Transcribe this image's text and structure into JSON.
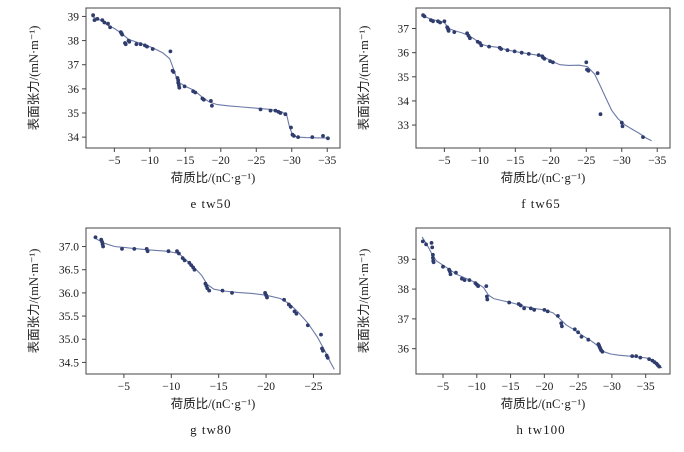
{
  "page": {
    "background": "#ffffff"
  },
  "colors": {
    "point": "#2f3c6e",
    "line": "#6b79a7",
    "axis": "#444444",
    "text": "#1a1a1a"
  },
  "chart_data": [
    {
      "id": "e-tw50",
      "type": "scatter",
      "caption": "e  tw50",
      "xlabel": "荷质比/(nC·g⁻¹)",
      "ylabel": "表面张力/(mN·m⁻¹)",
      "xlim": [
        -1,
        -36.8
      ],
      "ylim": [
        33.55,
        39.35
      ],
      "xtick_values": [
        -5,
        -10,
        -15,
        -20,
        -25,
        -30,
        -35
      ],
      "xtick_labels": [
        "−5",
        "−10",
        "−15",
        "−20",
        "−25",
        "−30",
        "−35"
      ],
      "ytick_values": [
        34,
        35,
        36,
        37,
        38,
        39
      ],
      "ytick_labels": [
        "34",
        "35",
        "36",
        "37",
        "38",
        "39"
      ],
      "points": [
        [
          -2.0,
          39.05
        ],
        [
          -2.2,
          38.85
        ],
        [
          -2.6,
          38.9
        ],
        [
          -3.3,
          38.85
        ],
        [
          -3.6,
          38.75
        ],
        [
          -4.1,
          38.7
        ],
        [
          -4.4,
          38.55
        ],
        [
          -5.9,
          38.35
        ],
        [
          -6.0,
          38.3
        ],
        [
          -6.1,
          38.25
        ],
        [
          -6.5,
          37.9
        ],
        [
          -6.6,
          37.85
        ],
        [
          -7.0,
          38.0
        ],
        [
          -7.1,
          37.95
        ],
        [
          -8.1,
          37.85
        ],
        [
          -8.7,
          37.85
        ],
        [
          -9.3,
          37.8
        ],
        [
          -9.6,
          37.75
        ],
        [
          -10.4,
          37.65
        ],
        [
          -12.9,
          37.55
        ],
        [
          -13.2,
          36.75
        ],
        [
          -13.35,
          36.7
        ],
        [
          -13.9,
          36.45
        ],
        [
          -14.0,
          36.35
        ],
        [
          -14.0,
          36.25
        ],
        [
          -14.1,
          36.15
        ],
        [
          -14.15,
          36.05
        ],
        [
          -14.9,
          36.1
        ],
        [
          -16.1,
          35.9
        ],
        [
          -16.4,
          35.85
        ],
        [
          -17.4,
          35.6
        ],
        [
          -17.6,
          35.55
        ],
        [
          -18.6,
          35.5
        ],
        [
          -18.75,
          35.3
        ],
        [
          -25.6,
          35.15
        ],
        [
          -27.0,
          35.1
        ],
        [
          -27.7,
          35.1
        ],
        [
          -28.1,
          35.05
        ],
        [
          -28.4,
          35.0
        ],
        [
          -29.1,
          34.95
        ],
        [
          -29.9,
          34.4
        ],
        [
          -30.1,
          34.1
        ],
        [
          -30.3,
          34.05
        ],
        [
          -30.9,
          34.0
        ],
        [
          -32.9,
          34.0
        ],
        [
          -34.4,
          34.05
        ],
        [
          -35.1,
          33.95
        ]
      ],
      "fit_line": [
        [
          -1.8,
          39.0
        ],
        [
          -3.0,
          38.85
        ],
        [
          -4.0,
          38.65
        ],
        [
          -5.0,
          38.5
        ],
        [
          -6.0,
          38.3
        ],
        [
          -7.0,
          38.05
        ],
        [
          -8.0,
          37.95
        ],
        [
          -9.0,
          37.85
        ],
        [
          -10.4,
          37.7
        ],
        [
          -11.8,
          37.5
        ],
        [
          -12.8,
          37.25
        ],
        [
          -13.3,
          36.85
        ],
        [
          -13.7,
          36.5
        ],
        [
          -14.2,
          36.25
        ],
        [
          -15.0,
          36.1
        ],
        [
          -16.2,
          35.95
        ],
        [
          -17.4,
          35.65
        ],
        [
          -18.4,
          35.45
        ],
        [
          -19.5,
          35.35
        ],
        [
          -21.0,
          35.3
        ],
        [
          -23.0,
          35.25
        ],
        [
          -25.0,
          35.2
        ],
        [
          -27.0,
          35.15
        ],
        [
          -28.6,
          35.05
        ],
        [
          -29.3,
          34.9
        ],
        [
          -29.7,
          34.4
        ],
        [
          -30.1,
          34.1
        ],
        [
          -30.7,
          34.0
        ],
        [
          -32.0,
          33.98
        ],
        [
          -34.0,
          33.97
        ],
        [
          -35.3,
          33.97
        ]
      ]
    },
    {
      "id": "f-tw65",
      "type": "scatter",
      "caption": "f  tw65",
      "xlabel": "荷质比/(nC·g⁻¹)",
      "ylabel": "表面张力/(mN·m⁻¹)",
      "xlim": [
        -1,
        -36.8
      ],
      "ylim": [
        32.05,
        37.85
      ],
      "xtick_values": [
        -5,
        -10,
        -15,
        -20,
        -25,
        -30,
        -35
      ],
      "xtick_labels": [
        "−5",
        "−10",
        "−15",
        "−20",
        "−25",
        "−30",
        "−35"
      ],
      "ytick_values": [
        33,
        34,
        35,
        36,
        37
      ],
      "ytick_labels": [
        "33",
        "34",
        "35",
        "36",
        "37"
      ],
      "points": [
        [
          -2.0,
          37.55
        ],
        [
          -2.2,
          37.5
        ],
        [
          -3.1,
          37.35
        ],
        [
          -3.4,
          37.3
        ],
        [
          -4.1,
          37.3
        ],
        [
          -4.4,
          37.25
        ],
        [
          -5.0,
          37.3
        ],
        [
          -5.4,
          37.05
        ],
        [
          -5.5,
          37.0
        ],
        [
          -5.55,
          36.95
        ],
        [
          -5.6,
          36.9
        ],
        [
          -6.4,
          36.85
        ],
        [
          -8.2,
          36.8
        ],
        [
          -8.4,
          36.7
        ],
        [
          -8.6,
          36.6
        ],
        [
          -9.7,
          36.45
        ],
        [
          -10.0,
          36.4
        ],
        [
          -10.2,
          36.3
        ],
        [
          -11.3,
          36.25
        ],
        [
          -12.8,
          36.2
        ],
        [
          -13.0,
          36.15
        ],
        [
          -13.9,
          36.1
        ],
        [
          -14.9,
          36.05
        ],
        [
          -15.9,
          36.0
        ],
        [
          -16.9,
          35.95
        ],
        [
          -18.3,
          35.9
        ],
        [
          -18.8,
          35.85
        ],
        [
          -18.9,
          35.8
        ],
        [
          -19.1,
          35.75
        ],
        [
          -19.9,
          35.65
        ],
        [
          -20.3,
          35.6
        ],
        [
          -25.0,
          35.6
        ],
        [
          -25.1,
          35.3
        ],
        [
          -25.3,
          35.25
        ],
        [
          -26.6,
          35.15
        ],
        [
          -27.0,
          33.45
        ],
        [
          -30.0,
          33.1
        ],
        [
          -30.1,
          32.95
        ],
        [
          -33.0,
          32.5
        ]
      ],
      "fit_line": [
        [
          -1.8,
          37.55
        ],
        [
          -3.0,
          37.4
        ],
        [
          -4.0,
          37.32
        ],
        [
          -5.0,
          37.25
        ],
        [
          -5.6,
          37.0
        ],
        [
          -6.5,
          36.9
        ],
        [
          -7.5,
          36.82
        ],
        [
          -8.5,
          36.7
        ],
        [
          -9.3,
          36.55
        ],
        [
          -10.2,
          36.35
        ],
        [
          -11.0,
          36.28
        ],
        [
          -12.5,
          36.22
        ],
        [
          -14.0,
          36.1
        ],
        [
          -15.5,
          36.02
        ],
        [
          -17.0,
          35.95
        ],
        [
          -18.5,
          35.88
        ],
        [
          -19.3,
          35.78
        ],
        [
          -20.3,
          35.62
        ],
        [
          -21.3,
          35.5
        ],
        [
          -22.5,
          35.47
        ],
        [
          -24.0,
          35.48
        ],
        [
          -25.2,
          35.42
        ],
        [
          -26.2,
          35.1
        ],
        [
          -27.0,
          34.6
        ],
        [
          -27.8,
          34.1
        ],
        [
          -28.6,
          33.6
        ],
        [
          -29.5,
          33.25
        ],
        [
          -30.5,
          33.0
        ],
        [
          -31.5,
          32.82
        ],
        [
          -32.5,
          32.65
        ],
        [
          -33.5,
          32.45
        ],
        [
          -34.2,
          32.35
        ]
      ]
    },
    {
      "id": "g-tw80",
      "type": "scatter",
      "caption": "g  tw80",
      "xlabel": "荷质比/(nC·g⁻¹)",
      "ylabel": "表面张力/(mN·m⁻¹)",
      "xlim": [
        -1,
        -27.8
      ],
      "ylim": [
        34.25,
        37.4
      ],
      "xtick_values": [
        -5,
        -10,
        -15,
        -20,
        -25
      ],
      "xtick_labels": [
        "−5",
        "−10",
        "−15",
        "−20",
        "−25"
      ],
      "ytick_values": [
        34.5,
        35.0,
        35.5,
        36.0,
        36.5,
        37.0
      ],
      "ytick_labels": [
        "34.5",
        "35.0",
        "35.5",
        "36.0",
        "36.5",
        "37.0"
      ],
      "points": [
        [
          -2.0,
          37.2
        ],
        [
          -2.6,
          37.15
        ],
        [
          -2.7,
          37.1
        ],
        [
          -2.75,
          37.05
        ],
        [
          -2.8,
          37.0
        ],
        [
          -4.8,
          36.95
        ],
        [
          -6.1,
          36.95
        ],
        [
          -7.4,
          36.95
        ],
        [
          -7.5,
          36.9
        ],
        [
          -9.7,
          36.9
        ],
        [
          -10.6,
          36.9
        ],
        [
          -10.8,
          36.85
        ],
        [
          -11.2,
          36.75
        ],
        [
          -11.4,
          36.7
        ],
        [
          -11.9,
          36.65
        ],
        [
          -12.1,
          36.6
        ],
        [
          -12.3,
          36.55
        ],
        [
          -12.45,
          36.5
        ],
        [
          -13.6,
          36.2
        ],
        [
          -13.7,
          36.15
        ],
        [
          -13.8,
          36.1
        ],
        [
          -14.0,
          36.05
        ],
        [
          -15.4,
          36.05
        ],
        [
          -16.4,
          36.0
        ],
        [
          -19.9,
          36.0
        ],
        [
          -20.0,
          35.95
        ],
        [
          -20.1,
          35.9
        ],
        [
          -21.9,
          35.85
        ],
        [
          -22.4,
          35.75
        ],
        [
          -22.6,
          35.7
        ],
        [
          -23.0,
          35.6
        ],
        [
          -23.2,
          35.55
        ],
        [
          -24.4,
          35.3
        ],
        [
          -25.8,
          35.1
        ],
        [
          -25.9,
          34.8
        ],
        [
          -26.0,
          34.75
        ],
        [
          -26.4,
          34.65
        ],
        [
          -26.5,
          34.6
        ]
      ],
      "fit_line": [
        [
          -1.8,
          37.2
        ],
        [
          -2.8,
          37.08
        ],
        [
          -4.0,
          37.0
        ],
        [
          -5.5,
          36.97
        ],
        [
          -7.5,
          36.93
        ],
        [
          -9.5,
          36.9
        ],
        [
          -10.8,
          36.85
        ],
        [
          -11.5,
          36.72
        ],
        [
          -12.4,
          36.55
        ],
        [
          -13.2,
          36.38
        ],
        [
          -13.8,
          36.18
        ],
        [
          -14.5,
          36.08
        ],
        [
          -15.5,
          36.04
        ],
        [
          -17.0,
          36.01
        ],
        [
          -18.5,
          35.99
        ],
        [
          -20.0,
          35.95
        ],
        [
          -21.5,
          35.88
        ],
        [
          -22.5,
          35.76
        ],
        [
          -23.4,
          35.58
        ],
        [
          -24.4,
          35.35
        ],
        [
          -25.4,
          35.05
        ],
        [
          -26.2,
          34.75
        ],
        [
          -26.8,
          34.5
        ],
        [
          -27.2,
          34.35
        ]
      ]
    },
    {
      "id": "h-tw100",
      "type": "scatter",
      "caption": "h  tw100",
      "xlabel": "荷质比/(nC·g⁻¹)",
      "ylabel": "表面张力/(mN·m⁻¹)",
      "xlim": [
        -1,
        -38.6
      ],
      "ylim": [
        35.15,
        40.05
      ],
      "xtick_values": [
        -5,
        -10,
        -15,
        -20,
        -25,
        -30,
        -35
      ],
      "xtick_labels": [
        "−5",
        "−10",
        "−15",
        "−20",
        "−25",
        "−30",
        "−35"
      ],
      "ytick_values": [
        36,
        37,
        38,
        39
      ],
      "ytick_labels": [
        "36",
        "37",
        "38",
        "39"
      ],
      "points": [
        [
          -2.0,
          39.6
        ],
        [
          -2.5,
          39.5
        ],
        [
          -3.3,
          39.55
        ],
        [
          -3.4,
          39.4
        ],
        [
          -3.5,
          39.15
        ],
        [
          -3.5,
          39.05
        ],
        [
          -3.55,
          38.95
        ],
        [
          -3.6,
          38.9
        ],
        [
          -5.0,
          38.75
        ],
        [
          -5.9,
          38.65
        ],
        [
          -6.0,
          38.6
        ],
        [
          -6.1,
          38.5
        ],
        [
          -6.9,
          38.55
        ],
        [
          -7.8,
          38.35
        ],
        [
          -8.2,
          38.3
        ],
        [
          -8.9,
          38.3
        ],
        [
          -9.8,
          38.2
        ],
        [
          -10.0,
          38.15
        ],
        [
          -10.2,
          38.1
        ],
        [
          -11.4,
          38.1
        ],
        [
          -11.5,
          37.75
        ],
        [
          -11.55,
          37.65
        ],
        [
          -14.8,
          37.55
        ],
        [
          -16.2,
          37.5
        ],
        [
          -16.5,
          37.45
        ],
        [
          -17.0,
          37.35
        ],
        [
          -18.0,
          37.35
        ],
        [
          -18.5,
          37.3
        ],
        [
          -20.0,
          37.3
        ],
        [
          -20.5,
          37.25
        ],
        [
          -22.0,
          37.1
        ],
        [
          -22.5,
          36.85
        ],
        [
          -22.6,
          36.75
        ],
        [
          -24.5,
          36.65
        ],
        [
          -25.0,
          36.55
        ],
        [
          -25.5,
          36.4
        ],
        [
          -26.5,
          36.3
        ],
        [
          -28.0,
          36.15
        ],
        [
          -28.1,
          36.1
        ],
        [
          -28.2,
          36.05
        ],
        [
          -28.3,
          36.0
        ],
        [
          -28.4,
          35.95
        ],
        [
          -28.6,
          35.9
        ],
        [
          -33.0,
          35.75
        ],
        [
          -33.6,
          35.75
        ],
        [
          -34.2,
          35.7
        ],
        [
          -35.5,
          35.65
        ],
        [
          -36.0,
          35.6
        ],
        [
          -36.3,
          35.55
        ],
        [
          -36.6,
          35.5
        ],
        [
          -36.8,
          35.45
        ],
        [
          -37.0,
          35.4
        ]
      ],
      "fit_line": [
        [
          -1.9,
          39.75
        ],
        [
          -2.6,
          39.5
        ],
        [
          -3.3,
          39.2
        ],
        [
          -4.0,
          38.95
        ],
        [
          -5.0,
          38.8
        ],
        [
          -6.0,
          38.65
        ],
        [
          -7.0,
          38.5
        ],
        [
          -8.0,
          38.4
        ],
        [
          -9.0,
          38.3
        ],
        [
          -10.0,
          38.2
        ],
        [
          -11.0,
          38.05
        ],
        [
          -11.7,
          37.8
        ],
        [
          -12.5,
          37.68
        ],
        [
          -14.0,
          37.6
        ],
        [
          -15.5,
          37.52
        ],
        [
          -17.0,
          37.42
        ],
        [
          -18.5,
          37.35
        ],
        [
          -20.0,
          37.3
        ],
        [
          -21.3,
          37.2
        ],
        [
          -22.3,
          37.0
        ],
        [
          -23.2,
          36.8
        ],
        [
          -24.5,
          36.62
        ],
        [
          -25.8,
          36.42
        ],
        [
          -27.0,
          36.25
        ],
        [
          -28.2,
          36.05
        ],
        [
          -28.8,
          35.9
        ],
        [
          -29.8,
          35.82
        ],
        [
          -31.0,
          35.78
        ],
        [
          -32.5,
          35.75
        ],
        [
          -34.0,
          35.72
        ],
        [
          -35.3,
          35.68
        ],
        [
          -36.2,
          35.6
        ],
        [
          -37.0,
          35.45
        ],
        [
          -37.4,
          35.35
        ]
      ]
    }
  ]
}
